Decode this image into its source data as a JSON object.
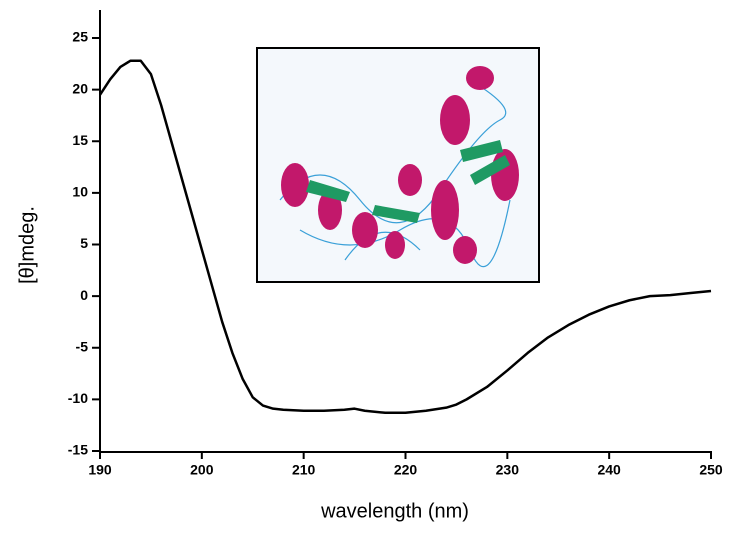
{
  "chart_data": {
    "type": "line",
    "x_label": "wavelength (nm)",
    "y_label": "[θ]mdeg.",
    "x": [
      190,
      191,
      192,
      193,
      194,
      195,
      196,
      197,
      198,
      199,
      200,
      201,
      202,
      203,
      204,
      205,
      206,
      207,
      208,
      210,
      212,
      214,
      215,
      216,
      218,
      220,
      222,
      224,
      225,
      226,
      228,
      230,
      232,
      234,
      236,
      238,
      240,
      242,
      244,
      246,
      248,
      250
    ],
    "series": [
      {
        "name": null,
        "color": "#000000",
        "values": [
          19.5,
          21,
          22.2,
          22.8,
          22.8,
          21.5,
          18.5,
          15,
          11.5,
          8,
          4.5,
          1,
          -2.5,
          -5.5,
          -8,
          -9.8,
          -10.6,
          -10.9,
          -11,
          -11.1,
          -11.1,
          -11,
          -10.9,
          -11.1,
          -11.3,
          -11.3,
          -11.1,
          -10.8,
          -10.5,
          -10,
          -8.8,
          -7.2,
          -5.5,
          -4,
          -2.8,
          -1.8,
          -1,
          -0.4,
          0,
          0.1,
          0.3,
          0.5
        ]
      }
    ],
    "xlim": [
      190,
      250
    ],
    "xticks": [
      190,
      200,
      210,
      220,
      230,
      240,
      250
    ],
    "ylim": [
      -15,
      25
    ],
    "yticks": [
      -15,
      -10,
      -5,
      0,
      5,
      10,
      15,
      20,
      25
    ],
    "grid": false
  }
}
